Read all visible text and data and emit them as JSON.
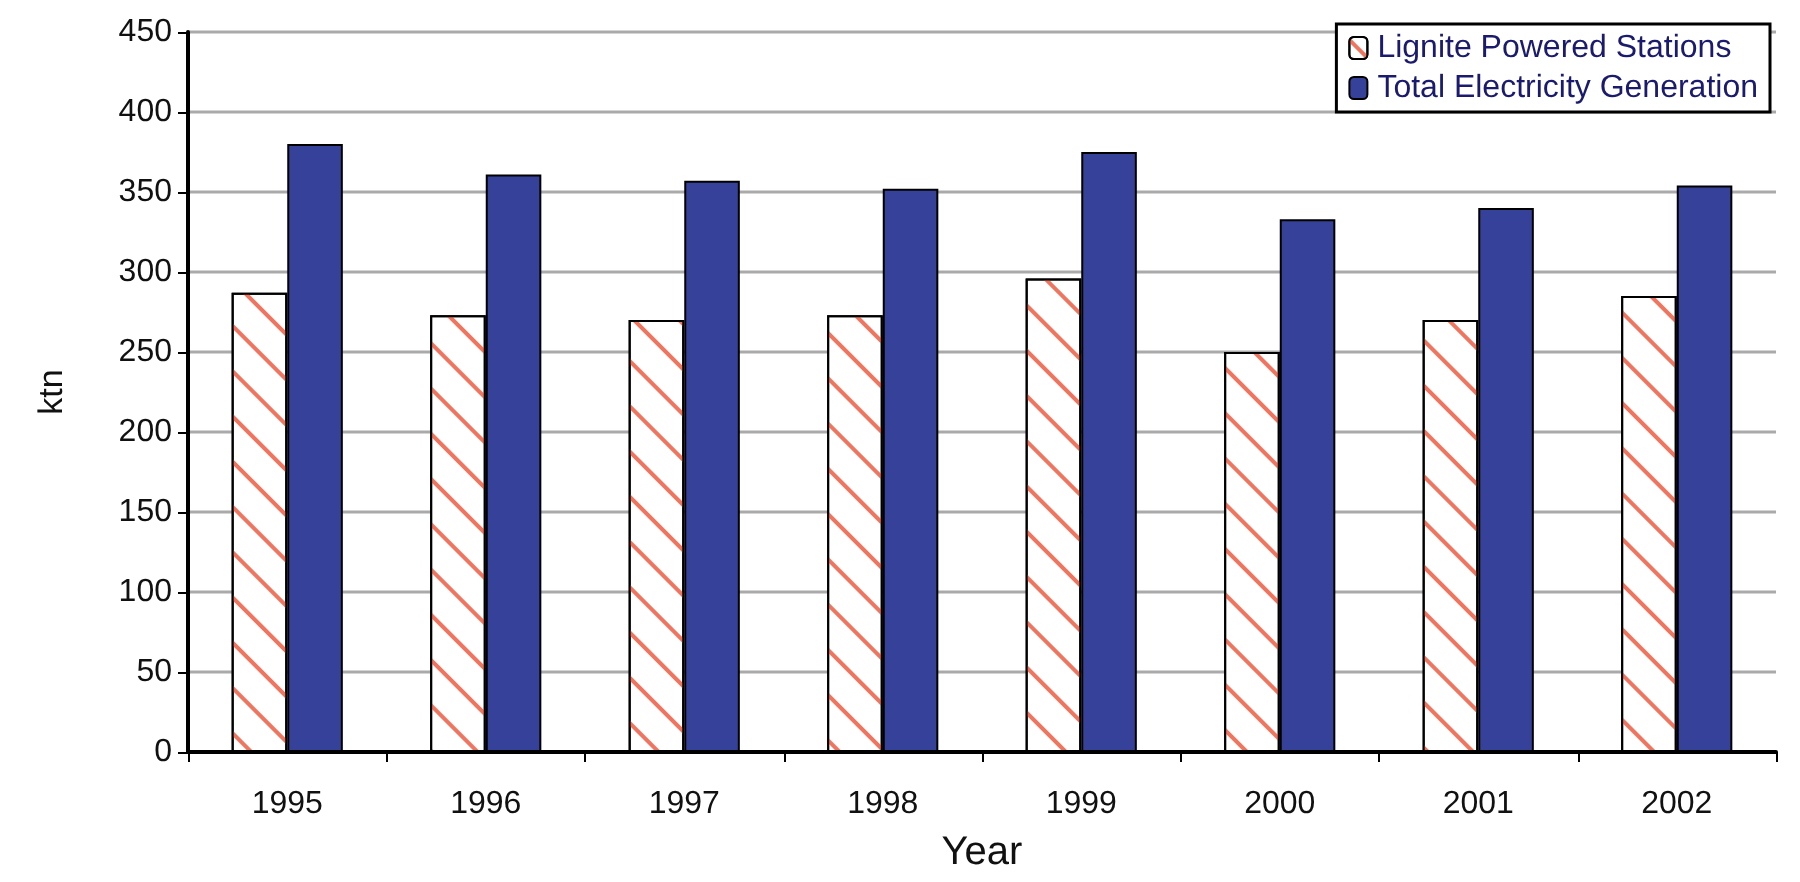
{
  "chart_data": {
    "type": "bar",
    "xlabel": "Year",
    "ylabel": "ktn",
    "categories": [
      "1995",
      "1996",
      "1997",
      "1998",
      "1999",
      "2000",
      "2001",
      "2002"
    ],
    "series": [
      {
        "name": "Lignite Powered Stations",
        "color": "#ffffff",
        "values": [
          287,
          273,
          270,
          273,
          296,
          250,
          270,
          285
        ]
      },
      {
        "name": "Total Electricity Generation",
        "color": "#36419a",
        "values": [
          380,
          361,
          357,
          352,
          375,
          333,
          340,
          354
        ]
      }
    ],
    "ylim": [
      0,
      450
    ],
    "yticks": [
      0,
      50,
      100,
      150,
      200,
      250,
      300,
      350,
      400,
      450
    ],
    "grid": "y",
    "legend": "top right"
  }
}
